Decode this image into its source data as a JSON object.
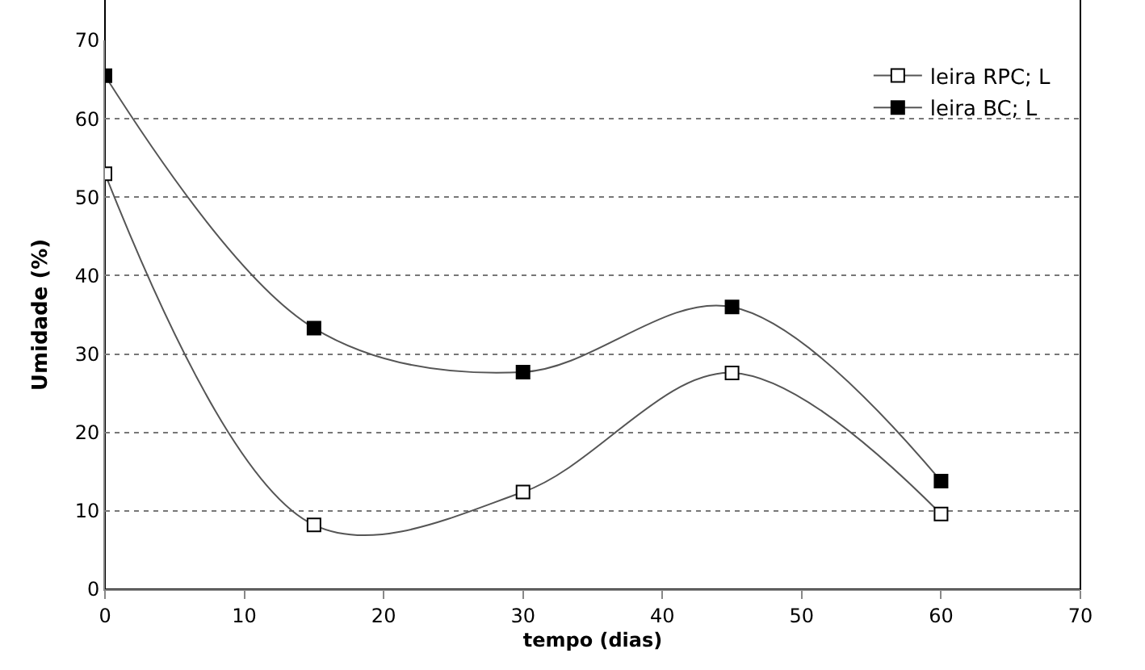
{
  "chart_data": {
    "type": "line",
    "xlabel": "tempo (dias)",
    "ylabel": "Umidade (%)",
    "x": [
      0,
      15,
      30,
      45,
      60
    ],
    "series": [
      {
        "name": "leira RPC; L",
        "color": "#ffffff",
        "values": [
          53,
          8.2,
          12.4,
          27.6,
          9.6
        ]
      },
      {
        "name": "leira BC; L",
        "color": "#000000",
        "values": [
          65.5,
          33.3,
          27.7,
          36,
          13.8
        ]
      }
    ],
    "xlim": [
      0,
      70
    ],
    "xticks": [
      0,
      10,
      20,
      30,
      40,
      50,
      60,
      70
    ],
    "ylim": [
      0,
      70
    ],
    "yticks": [
      0,
      10,
      20,
      30,
      40,
      50,
      60,
      70
    ],
    "grid": "y",
    "legend": "top right",
    "marker": "square",
    "line_style": "solid"
  }
}
